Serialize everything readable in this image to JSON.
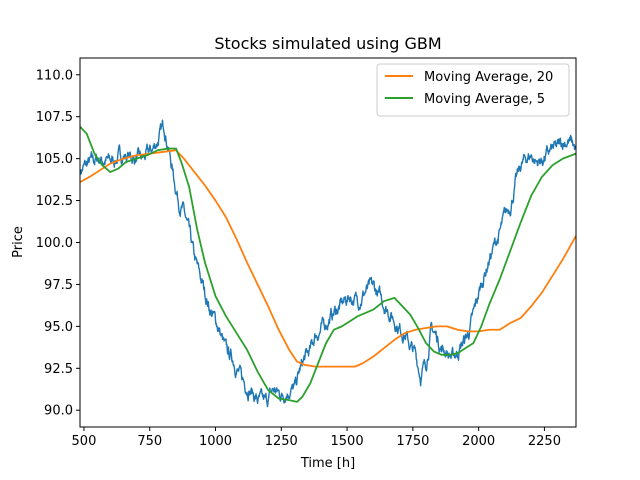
{
  "chart_data": {
    "type": "line",
    "title": "Stocks simulated using GBM",
    "xlabel": "Time [h]",
    "ylabel": "Price",
    "xlim": [
      485,
      2370
    ],
    "ylim": [
      89.0,
      111.0
    ],
    "xticks": [
      500,
      750,
      1000,
      1250,
      1500,
      1750,
      2000,
      2250
    ],
    "yticks": [
      90.0,
      92.5,
      95.0,
      97.5,
      100.0,
      102.5,
      105.0,
      107.5,
      110.0
    ],
    "legend_position": "top-right",
    "grid": false,
    "series": [
      {
        "name": "",
        "color": "#1f77b4",
        "noisy": true,
        "x": [
          485,
          520,
          560,
          600,
          640,
          680,
          720,
          760,
          790,
          805,
          820,
          840,
          860,
          880,
          900,
          920,
          950,
          980,
          1010,
          1040,
          1070,
          1100,
          1130,
          1160,
          1190,
          1220,
          1250,
          1280,
          1300,
          1320,
          1340,
          1360,
          1380,
          1400,
          1420,
          1450,
          1480,
          1510,
          1540,
          1570,
          1600,
          1630,
          1660,
          1680,
          1700,
          1720,
          1740,
          1760,
          1780,
          1800,
          1820,
          1840,
          1860,
          1880,
          1900,
          1920,
          1940,
          1960,
          1980,
          2000,
          2020,
          2040,
          2060,
          2080,
          2100,
          2120,
          2140,
          2160,
          2180,
          2200,
          2220,
          2240,
          2260,
          2280,
          2300,
          2320,
          2340,
          2360,
          2370
        ],
        "y": [
          104.3,
          104.7,
          105.0,
          104.8,
          105.2,
          105.1,
          104.9,
          105.5,
          106.4,
          107.0,
          105.8,
          104.0,
          102.5,
          101.8,
          100.5,
          99.0,
          97.5,
          96.0,
          95.0,
          93.5,
          93.0,
          91.8,
          91.3,
          90.6,
          90.4,
          91.2,
          90.9,
          91.3,
          91.2,
          92.3,
          93.1,
          93.5,
          94.5,
          94.8,
          95.2,
          95.8,
          96.3,
          96.8,
          96.5,
          97.1,
          97.3,
          96.6,
          95.9,
          95.4,
          94.9,
          94.6,
          93.8,
          93.3,
          92.1,
          92.8,
          94.8,
          94.4,
          93.7,
          93.5,
          93.1,
          93.5,
          94.0,
          94.5,
          95.6,
          96.9,
          98.0,
          99.0,
          99.8,
          100.5,
          101.5,
          102.2,
          103.5,
          104.5,
          105.0,
          105.2,
          104.8,
          104.9,
          105.2,
          105.5,
          105.6,
          106.0,
          106.1,
          105.8,
          105.5
        ]
      },
      {
        "name": "Moving Average, 20",
        "color": "#ff7f0e",
        "noisy": false,
        "x": [
          485,
          520,
          560,
          600,
          650,
          700,
          750,
          800,
          850,
          880,
          920,
          960,
          1000,
          1040,
          1080,
          1120,
          1160,
          1200,
          1240,
          1280,
          1310,
          1340,
          1380,
          1420,
          1460,
          1500,
          1530,
          1560,
          1600,
          1640,
          1680,
          1720,
          1760,
          1800,
          1840,
          1880,
          1920,
          1960,
          2000,
          2040,
          2080,
          2120,
          2160,
          2200,
          2240,
          2280,
          2320,
          2370
        ],
        "y": [
          103.6,
          103.9,
          104.3,
          104.7,
          105.0,
          105.2,
          105.3,
          105.4,
          105.5,
          105.0,
          104.2,
          103.4,
          102.5,
          101.5,
          100.2,
          98.8,
          97.5,
          96.2,
          94.8,
          93.6,
          92.9,
          92.7,
          92.6,
          92.6,
          92.6,
          92.6,
          92.6,
          92.8,
          93.2,
          93.7,
          94.2,
          94.6,
          94.8,
          94.9,
          95.0,
          95.0,
          94.8,
          94.7,
          94.7,
          94.8,
          94.8,
          95.2,
          95.5,
          96.2,
          97.0,
          98.0,
          99.0,
          100.4
        ]
      },
      {
        "name": "Moving Average, 5",
        "color": "#2ca02c",
        "noisy": false,
        "x": [
          485,
          510,
          540,
          570,
          600,
          630,
          660,
          700,
          740,
          780,
          820,
          850,
          870,
          900,
          930,
          960,
          1000,
          1040,
          1080,
          1120,
          1160,
          1200,
          1240,
          1280,
          1310,
          1330,
          1360,
          1390,
          1420,
          1450,
          1480,
          1510,
          1540,
          1570,
          1600,
          1640,
          1680,
          1710,
          1740,
          1770,
          1800,
          1830,
          1860,
          1890,
          1920,
          1950,
          1980,
          2010,
          2040,
          2080,
          2120,
          2160,
          2200,
          2240,
          2280,
          2320,
          2370
        ],
        "y": [
          106.9,
          106.5,
          105.3,
          104.6,
          104.2,
          104.4,
          104.8,
          105.0,
          105.2,
          105.5,
          105.6,
          105.6,
          104.8,
          103.3,
          100.8,
          98.8,
          96.8,
          95.6,
          94.6,
          93.6,
          92.3,
          91.2,
          90.7,
          90.6,
          90.5,
          90.8,
          91.6,
          92.8,
          94.0,
          94.8,
          95.0,
          95.3,
          95.6,
          95.8,
          96.0,
          96.5,
          96.7,
          96.2,
          95.7,
          94.9,
          94.0,
          93.5,
          93.3,
          93.3,
          93.4,
          93.7,
          94.0,
          95.0,
          96.3,
          97.8,
          99.5,
          101.2,
          102.8,
          103.9,
          104.6,
          105.0,
          105.3
        ]
      }
    ]
  }
}
